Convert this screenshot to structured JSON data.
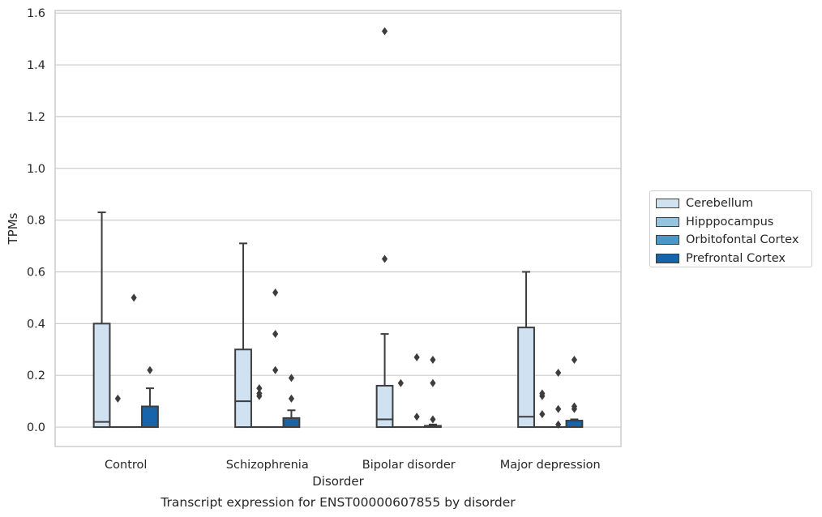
{
  "chart_data": {
    "type": "box",
    "title": "Transcript expression for ENST00000607855 by disorder",
    "xlabel": "Disorder",
    "ylabel": "TPMs",
    "ylim": [
      -0.075,
      1.61
    ],
    "yticks": [
      "0.0",
      "0.2",
      "0.4",
      "0.6",
      "0.8",
      "1.0",
      "1.2",
      "1.4",
      "1.6"
    ],
    "categories": [
      "Control",
      "Schizophrenia",
      "Bipolar disorder",
      "Major depression"
    ],
    "grid": "horizontal",
    "legend_position": "right",
    "series": [
      {
        "name": "Cerebellum",
        "color": "#d0e1f2",
        "boxes": [
          {
            "q1": 0.0,
            "median": 0.02,
            "q3": 0.4,
            "whisker_low": 0.0,
            "whisker_high": 0.83,
            "outliers": []
          },
          {
            "q1": 0.0,
            "median": 0.1,
            "q3": 0.3,
            "whisker_low": 0.0,
            "whisker_high": 0.71,
            "outliers": []
          },
          {
            "q1": 0.0,
            "median": 0.03,
            "q3": 0.16,
            "whisker_low": 0.0,
            "whisker_high": 0.36,
            "outliers": [
              0.65,
              1.53
            ]
          },
          {
            "q1": 0.0,
            "median": 0.04,
            "q3": 0.385,
            "whisker_low": 0.0,
            "whisker_high": 0.6,
            "outliers": []
          }
        ]
      },
      {
        "name": "Hipppocampus",
        "color": "#94c4df",
        "boxes": [
          {
            "q1": 0.0,
            "median": 0.0,
            "q3": 0.0,
            "whisker_low": 0.0,
            "whisker_high": 0.0,
            "outliers": [
              0.11
            ]
          },
          {
            "q1": 0.0,
            "median": 0.0,
            "q3": 0.0,
            "whisker_low": 0.0,
            "whisker_high": 0.0,
            "outliers": [
              0.12,
              0.13,
              0.15
            ]
          },
          {
            "q1": 0.0,
            "median": 0.0,
            "q3": 0.0,
            "whisker_low": 0.0,
            "whisker_high": 0.0,
            "outliers": [
              0.17
            ]
          },
          {
            "q1": 0.0,
            "median": 0.0,
            "q3": 0.0,
            "whisker_low": 0.0,
            "whisker_high": 0.0,
            "outliers": [
              0.05,
              0.12,
              0.13
            ]
          }
        ]
      },
      {
        "name": "Orbitofontal Cortex",
        "color": "#4a98c9",
        "boxes": [
          {
            "q1": 0.0,
            "median": 0.0,
            "q3": 0.0,
            "whisker_low": 0.0,
            "whisker_high": 0.0,
            "outliers": [
              0.5
            ]
          },
          {
            "q1": 0.0,
            "median": 0.0,
            "q3": 0.0,
            "whisker_low": 0.0,
            "whisker_high": 0.0,
            "outliers": [
              0.22,
              0.36,
              0.52
            ]
          },
          {
            "q1": 0.0,
            "median": 0.0,
            "q3": 0.0,
            "whisker_low": 0.0,
            "whisker_high": 0.0,
            "outliers": [
              0.04,
              0.27
            ]
          },
          {
            "q1": 0.0,
            "median": 0.0,
            "q3": 0.0,
            "whisker_low": 0.0,
            "whisker_high": 0.0,
            "outliers": [
              0.01,
              0.07,
              0.21
            ]
          }
        ]
      },
      {
        "name": "Prefrontal Cortex",
        "color": "#1764ab",
        "boxes": [
          {
            "q1": 0.0,
            "median": 0.0,
            "q3": 0.08,
            "whisker_low": 0.0,
            "whisker_high": 0.15,
            "outliers": [
              0.22
            ]
          },
          {
            "q1": 0.0,
            "median": 0.0,
            "q3": 0.035,
            "whisker_low": 0.0,
            "whisker_high": 0.065,
            "outliers": [
              0.11,
              0.19
            ]
          },
          {
            "q1": 0.0,
            "median": 0.0,
            "q3": 0.005,
            "whisker_low": 0.0,
            "whisker_high": 0.01,
            "outliers": [
              0.03,
              0.17,
              0.26
            ]
          },
          {
            "q1": 0.0,
            "median": 0.0,
            "q3": 0.025,
            "whisker_low": 0.0,
            "whisker_high": 0.03,
            "outliers": [
              0.07,
              0.08,
              0.26
            ]
          }
        ]
      }
    ]
  }
}
